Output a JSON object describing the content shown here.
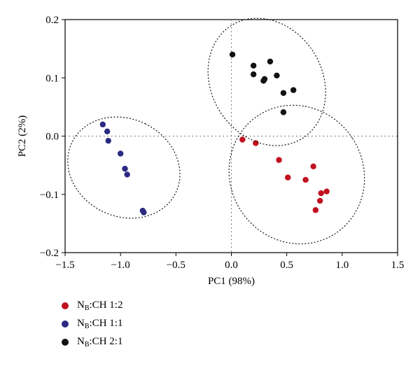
{
  "chart_data": {
    "type": "scatter",
    "xlabel": "PC1 (98%)",
    "ylabel": "PC2 (2%)",
    "xlim": [
      -1.5,
      1.5
    ],
    "ylim": [
      -0.2,
      0.2
    ],
    "x_ticks": [
      -1.5,
      -1.0,
      -0.5,
      0.0,
      0.5,
      1.0,
      1.5
    ],
    "x_tick_labels": [
      "−1.5",
      "−1.0",
      "−0.5",
      "0.0",
      "0.5",
      "1.0",
      "1.5"
    ],
    "y_ticks": [
      -0.2,
      -0.1,
      0.0,
      0.1,
      0.2
    ],
    "y_tick_labels": [
      "−0.2",
      "−0.1",
      "0.0",
      "0.1",
      "0.2"
    ],
    "reference_lines": {
      "x": 0,
      "y": 0,
      "style": "dotted"
    },
    "grid": false,
    "legend_position": "bottom-left, below plot",
    "series": [
      {
        "legend_main": "N",
        "legend_sub": "B",
        "legend_rest": ":CH 1:2",
        "color": "#c0111f",
        "points": [
          [
            0.1,
            -0.006
          ],
          [
            0.22,
            -0.012
          ],
          [
            0.43,
            -0.041
          ],
          [
            0.51,
            -0.071
          ],
          [
            0.67,
            -0.075
          ],
          [
            0.74,
            -0.052
          ],
          [
            0.76,
            -0.127
          ],
          [
            0.8,
            -0.111
          ],
          [
            0.81,
            -0.098
          ],
          [
            0.86,
            -0.095
          ]
        ],
        "ellipse": {
          "cx": 0.59,
          "cy": -0.066,
          "rx": 0.6,
          "ry": 0.055,
          "angle_deg": -33
        }
      },
      {
        "legend_main": "N",
        "legend_sub": "B",
        "legend_rest": ":CH 1:1",
        "color": "#2b2a82",
        "points": [
          [
            -1.16,
            0.02
          ],
          [
            -1.12,
            0.008
          ],
          [
            -1.11,
            -0.008
          ],
          [
            -1.0,
            -0.03
          ],
          [
            -0.96,
            -0.056
          ],
          [
            -0.94,
            -0.066
          ],
          [
            -0.8,
            -0.128
          ],
          [
            -0.79,
            -0.131
          ]
        ],
        "ellipse": {
          "cx": -0.97,
          "cy": -0.054,
          "rx": 0.44,
          "ry": 0.045,
          "angle_deg": -64
        }
      },
      {
        "legend_main": "N",
        "legend_sub": "B",
        "legend_rest": ":CH 2:1",
        "color": "#111111",
        "points": [
          [
            0.01,
            0.14
          ],
          [
            0.2,
            0.121
          ],
          [
            0.2,
            0.106
          ],
          [
            0.29,
            0.095
          ],
          [
            0.3,
            0.098
          ],
          [
            0.35,
            0.128
          ],
          [
            0.41,
            0.104
          ],
          [
            0.47,
            0.074
          ],
          [
            0.47,
            0.041
          ],
          [
            0.56,
            0.079
          ]
        ],
        "ellipse": {
          "cx": 0.32,
          "cy": 0.093,
          "rx": 0.5,
          "ry": 0.052,
          "angle_deg": -32
        }
      }
    ]
  }
}
